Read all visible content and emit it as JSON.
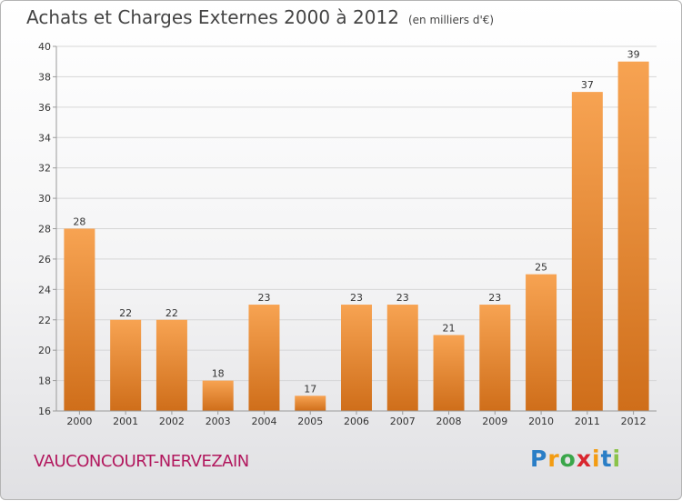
{
  "chart_data": {
    "type": "bar",
    "title": "Achats et Charges Externes 2000 à 2012",
    "unit": "(en milliers d'€)",
    "categories": [
      "2000",
      "2001",
      "2002",
      "2003",
      "2004",
      "2005",
      "2006",
      "2007",
      "2008",
      "2009",
      "2010",
      "2011",
      "2012"
    ],
    "values": [
      28,
      22,
      22,
      18,
      23,
      17,
      23,
      23,
      21,
      23,
      25,
      37,
      39
    ],
    "ylim": [
      16,
      40
    ],
    "yticks": [
      16,
      18,
      20,
      22,
      24,
      26,
      28,
      30,
      32,
      34,
      36,
      38,
      40
    ],
    "xlabel": "",
    "ylabel": "",
    "grid": true,
    "bar_color_light": "#f7a352",
    "bar_color_dark": "#cf6e1a"
  },
  "commune": "VAUCONCOURT-NERVEZAIN",
  "logo": {
    "letters": [
      "P",
      "r",
      "o",
      "x",
      "i",
      "t",
      "i"
    ],
    "colors": [
      "#2a7ec6",
      "#f39c12",
      "#3aa64a",
      "#d9262f",
      "#f39c12",
      "#2a7ec6",
      "#8bc34a"
    ]
  }
}
